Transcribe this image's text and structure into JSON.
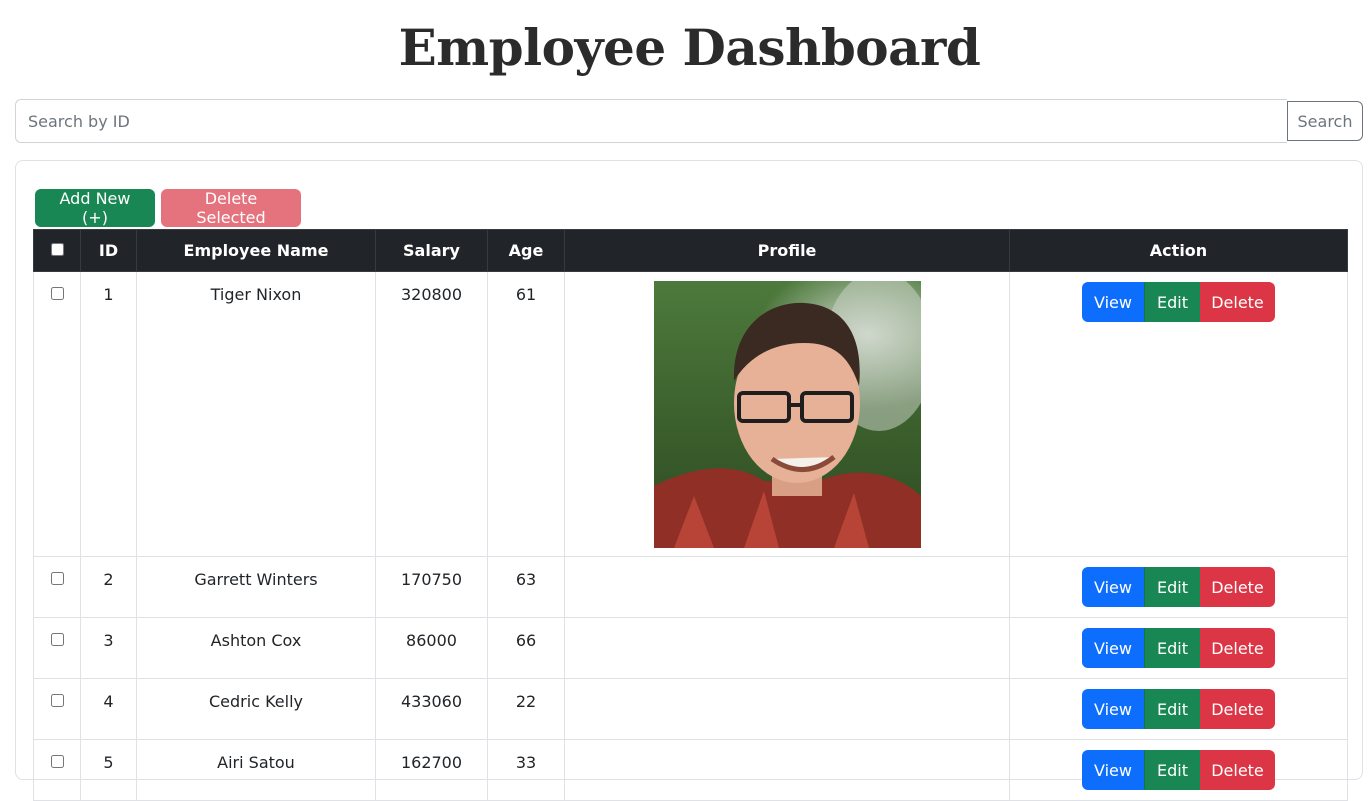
{
  "header": {
    "title": "Employee Dashboard"
  },
  "search": {
    "placeholder": "Search by ID",
    "value": "",
    "button_label": "Search"
  },
  "toolbar": {
    "add_label": "Add New (+)",
    "delete_selected_label": "Delete Selected"
  },
  "table": {
    "columns": [
      "ID",
      "Employee Name",
      "Salary",
      "Age",
      "Profile",
      "Action"
    ],
    "rows": [
      {
        "id": "1",
        "name": "Tiger Nixon",
        "salary": "320800",
        "age": "61",
        "has_profile": true
      },
      {
        "id": "2",
        "name": "Garrett Winters",
        "salary": "170750",
        "age": "63",
        "has_profile": false
      },
      {
        "id": "3",
        "name": "Ashton Cox",
        "salary": "86000",
        "age": "66",
        "has_profile": false
      },
      {
        "id": "4",
        "name": "Cedric Kelly",
        "salary": "433060",
        "age": "22",
        "has_profile": false
      },
      {
        "id": "5",
        "name": "Airi Satou",
        "salary": "162700",
        "age": "33",
        "has_profile": false
      }
    ],
    "actions": {
      "view": "View",
      "edit": "Edit",
      "delete": "Delete"
    }
  },
  "colors": {
    "primary": "#0d6efd",
    "success": "#198754",
    "danger": "#dc3545",
    "dark": "#212529"
  }
}
